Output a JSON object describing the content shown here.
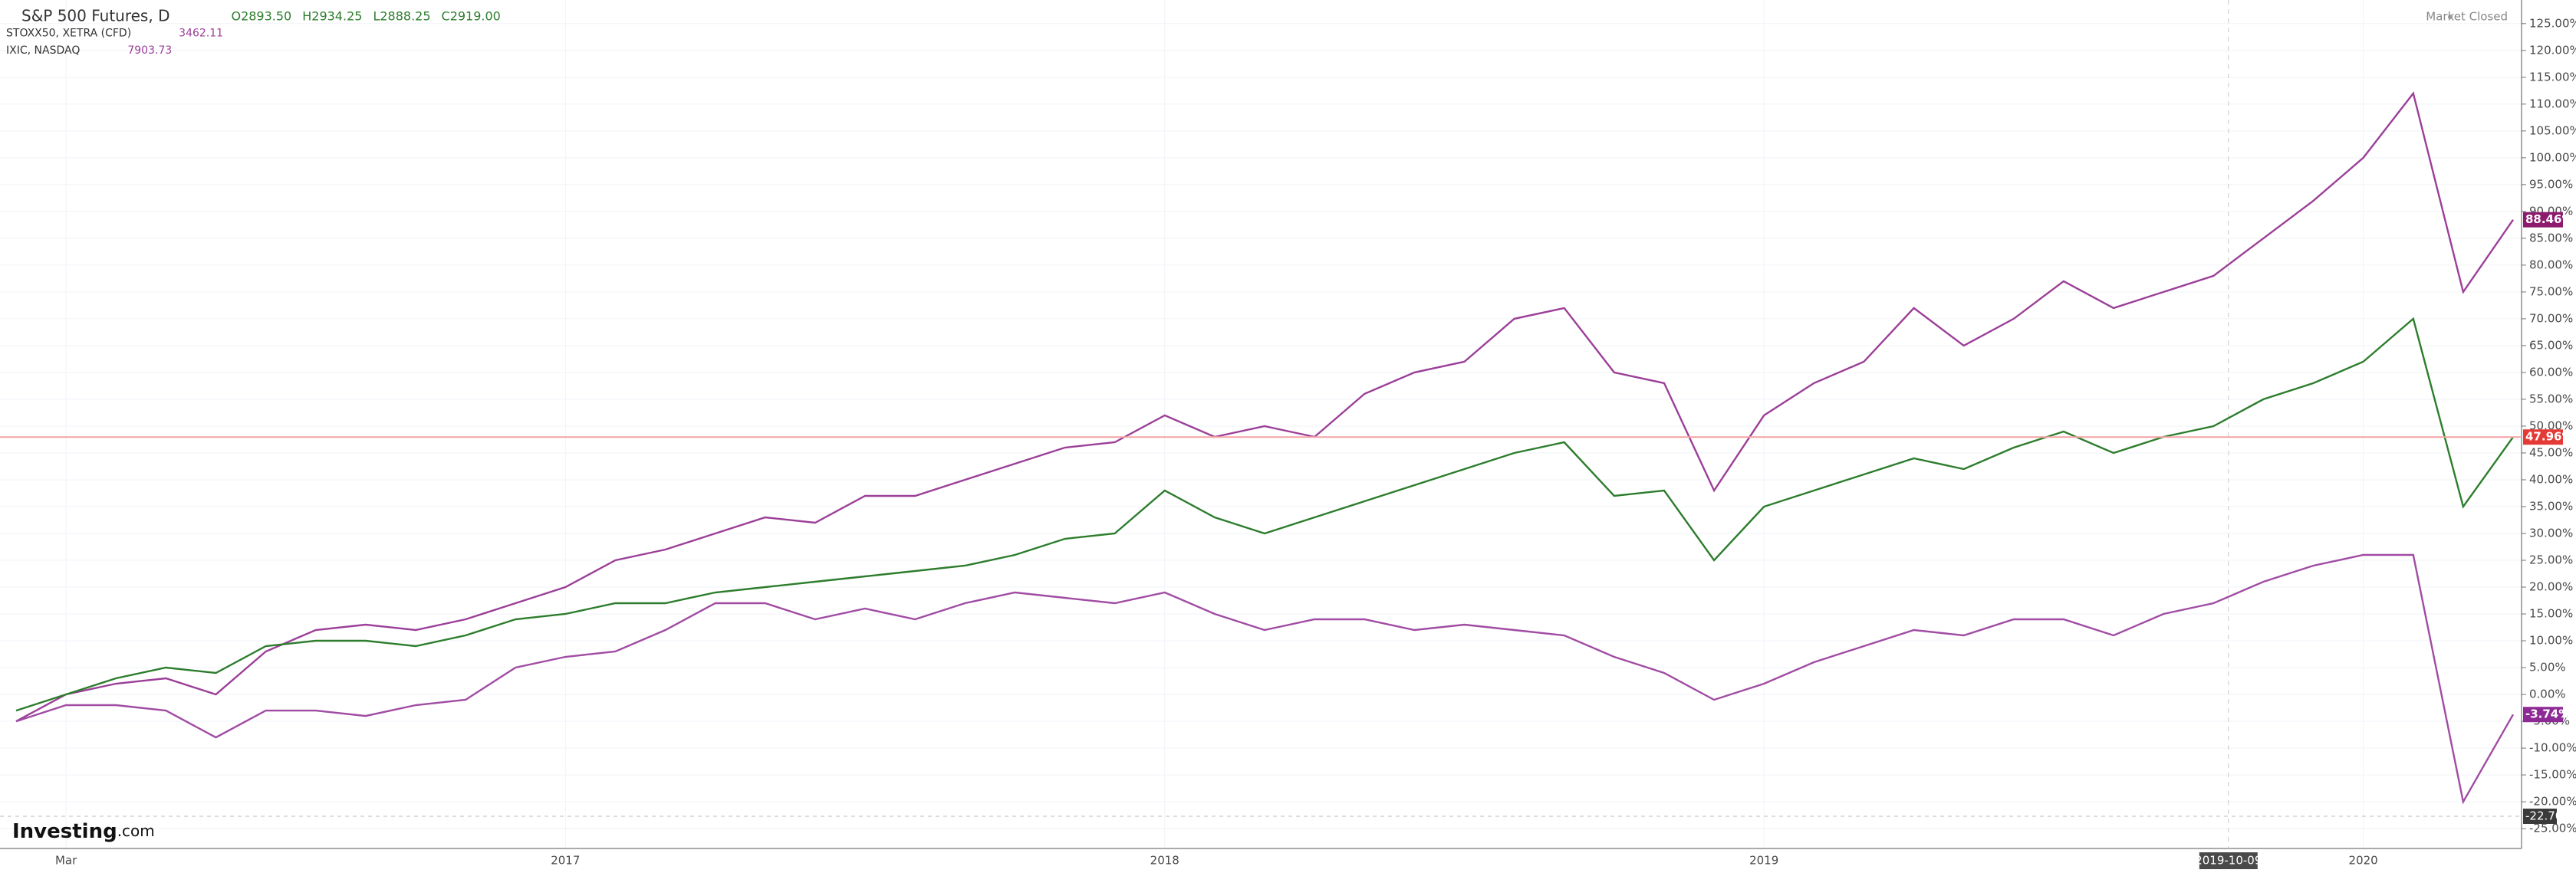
{
  "chart_data": {
    "type": "line",
    "legend": [
      {
        "name": "S&P 500 Futures, D",
        "values": [
          "O2893.50",
          "H2934.25",
          "L2888.25",
          "C2919.00"
        ]
      },
      {
        "name": "STOXX50, XETRA (CFD)",
        "values": [
          "3462.11"
        ]
      },
      {
        "name": "IXIC, NASDAQ",
        "values": [
          "7903.73"
        ]
      }
    ],
    "status": "Market Closed",
    "logo": {
      "brand": "Investing",
      "suffix": ".com"
    },
    "crosshair": "2019-10-09",
    "categories": [
      null,
      "Mar",
      null,
      null,
      null,
      null,
      null,
      null,
      null,
      null,
      null,
      "2017",
      null,
      null,
      null,
      null,
      null,
      null,
      null,
      null,
      null,
      null,
      null,
      "2018",
      null,
      null,
      null,
      null,
      null,
      null,
      null,
      null,
      null,
      null,
      null,
      "2019",
      null,
      null,
      null,
      null,
      null,
      null,
      null,
      null,
      null,
      null,
      null,
      "2020",
      null,
      null,
      null
    ],
    "series": [
      {
        "name": "IXIC, NASDAQ",
        "color": "#9b3f98",
        "badge_color": "#8c1b6e",
        "last_label": "88.46%",
        "values": [
          -5,
          0,
          2,
          3,
          0,
          8,
          12,
          13,
          12,
          14,
          17,
          20,
          25,
          27,
          30,
          33,
          32,
          37,
          37,
          40,
          43,
          46,
          47,
          52,
          48,
          50,
          48,
          56,
          60,
          62,
          70,
          72,
          60,
          58,
          38,
          52,
          58,
          62,
          72,
          65,
          70,
          77,
          72,
          75,
          78,
          85,
          92,
          100,
          112,
          75,
          88.46
        ]
      },
      {
        "name": "S&P 500 Futures, D",
        "color": "#2d7d2d",
        "badge_color": "#e53935",
        "last_label": "47.96%",
        "values": [
          -3,
          0,
          3,
          5,
          4,
          9,
          10,
          10,
          9,
          11,
          14,
          15,
          17,
          17,
          19,
          20,
          21,
          22,
          23,
          24,
          26,
          29,
          30,
          38,
          33,
          30,
          33,
          36,
          39,
          42,
          45,
          47,
          37,
          38,
          25,
          35,
          38,
          41,
          44,
          42,
          46,
          49,
          45,
          48,
          50,
          55,
          58,
          62,
          70,
          35,
          47.96
        ]
      },
      {
        "name": "STOXX50, XETRA (CFD)",
        "color": "#a04ca3",
        "badge_color": "#8e2a96",
        "last_label": "-3.74%",
        "values": [
          -5,
          -2,
          -2,
          -3,
          -8,
          -3,
          -3,
          -4,
          -2,
          -1,
          5,
          7,
          8,
          12,
          17,
          17,
          14,
          16,
          14,
          17,
          19,
          18,
          17,
          19,
          15,
          12,
          14,
          14,
          12,
          13,
          12,
          11,
          7,
          4,
          -1,
          2,
          6,
          9,
          12,
          11,
          14,
          14,
          11,
          15,
          17,
          21,
          24,
          26,
          26,
          -20,
          -3.74
        ]
      }
    ],
    "reference": {
      "value": -22.7,
      "label": "-22.70"
    },
    "ylim": [
      -28.7,
      129.4
    ],
    "yticks": [
      {
        "value": -25,
        "label": "-25.00%"
      },
      {
        "value": -20,
        "label": "-20.00%"
      },
      {
        "value": -15,
        "label": "-15.00%"
      },
      {
        "value": -10,
        "label": "-10.00%"
      },
      {
        "value": -5,
        "label": "-5.00%"
      },
      {
        "value": 0,
        "label": "0.00%"
      },
      {
        "value": 5,
        "label": "5.00%"
      },
      {
        "value": 10,
        "label": "10.00%"
      },
      {
        "value": 15,
        "label": "15.00%"
      },
      {
        "value": 20,
        "label": "20.00%"
      },
      {
        "value": 25,
        "label": "25.00%"
      },
      {
        "value": 30,
        "label": "30.00%"
      },
      {
        "value": 35,
        "label": "35.00%"
      },
      {
        "value": 40,
        "label": "40.00%"
      },
      {
        "value": 45,
        "label": "45.00%"
      },
      {
        "value": 50,
        "label": "50.00%"
      },
      {
        "value": 55,
        "label": "55.00%"
      },
      {
        "value": 60,
        "label": "60.00%"
      },
      {
        "value": 65,
        "label": "65.00%"
      },
      {
        "value": 70,
        "label": "70.00%"
      },
      {
        "value": 75,
        "label": "75.00%"
      },
      {
        "value": 80,
        "label": "80.00%"
      },
      {
        "value": 85,
        "label": "85.00%"
      },
      {
        "value": 90,
        "label": "90.00%"
      },
      {
        "value": 95,
        "label": "95.00%"
      },
      {
        "value": 100,
        "label": "100.00%"
      },
      {
        "value": 105,
        "label": "105.00%"
      },
      {
        "value": 110,
        "label": "110.00%"
      },
      {
        "value": 115,
        "label": "115.00%"
      },
      {
        "value": 120,
        "label": "120.00%"
      },
      {
        "value": 125,
        "label": "125.00%"
      }
    ],
    "grid": true
  }
}
